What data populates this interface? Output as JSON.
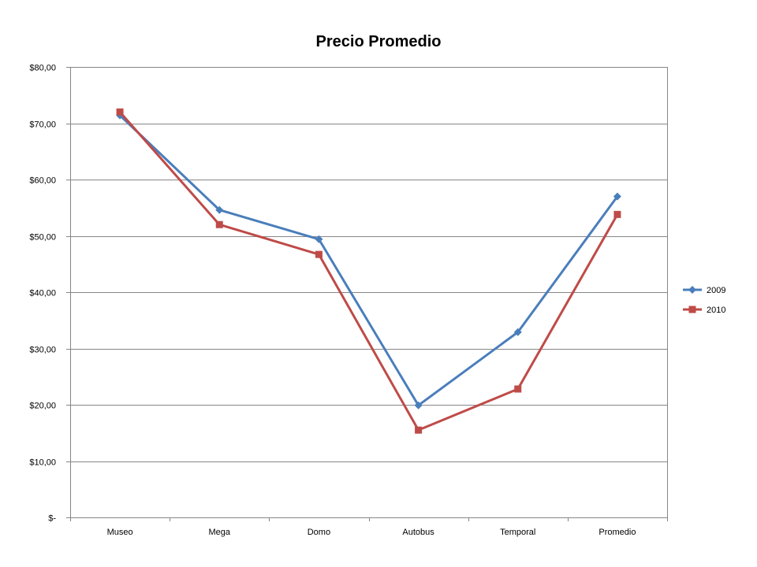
{
  "chart_data": {
    "type": "line",
    "title": "Precio Promedio",
    "xlabel": "",
    "ylabel": "",
    "categories": [
      "Museo",
      "Mega",
      "Domo",
      "Autobus",
      "Temporal",
      "Promedio"
    ],
    "ylim": [
      0,
      80
    ],
    "y_ticks": [
      0,
      10,
      20,
      30,
      40,
      50,
      60,
      70,
      80
    ],
    "y_tick_labels": [
      "$-",
      "$10,00",
      "$20,00",
      "$30,00",
      "$40,00",
      "$50,00",
      "$60,00",
      "$70,00",
      "$80,00"
    ],
    "grid": true,
    "legend_position": "right",
    "series": [
      {
        "name": "2009",
        "color": "#4a7ebb",
        "marker": "diamond",
        "values": [
          71.4,
          54.6,
          49.4,
          19.9,
          32.9,
          57.0
        ]
      },
      {
        "name": "2010",
        "color": "#be4b48",
        "marker": "square",
        "values": [
          72.0,
          52.0,
          46.7,
          15.5,
          22.8,
          53.8
        ]
      }
    ]
  }
}
